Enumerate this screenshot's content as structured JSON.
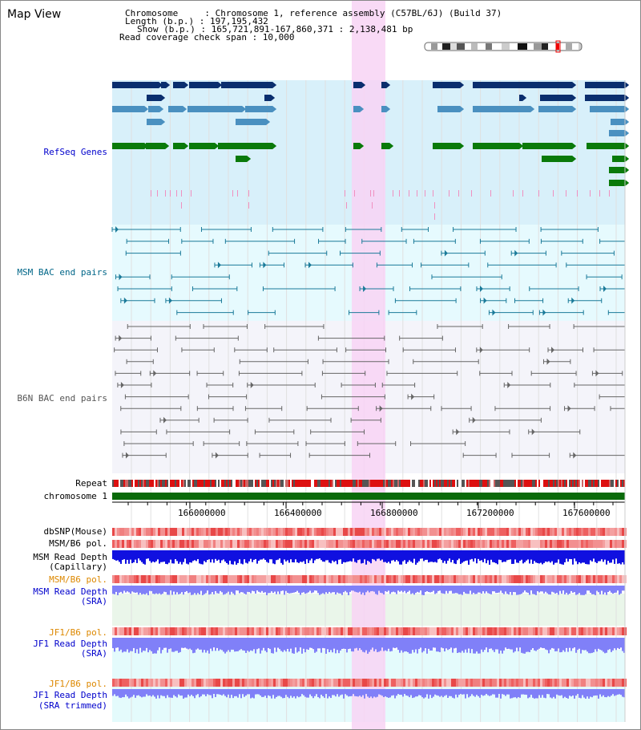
{
  "page": {
    "title": "Map View"
  },
  "header": {
    "line1": "Chromosome     : Chromosome 1, reference assembly (C57BL/6J) (Build 37)",
    "line2": "Length (b.p.) : 197,195,432",
    "line3": "Show (b.p.) : 165,721,891-167,860,371 : 2,138,481 bp",
    "line4": "Read coverage check span : 10,000"
  },
  "tracks": {
    "refseq": "RefSeq Genes",
    "msm_bac": "MSM BAC end pairs",
    "b6n_bac": "B6N BAC end pairs",
    "repeat": "Repeat",
    "chromosome": "chromosome 1",
    "dbsnp": "dbSNP(Mouse)",
    "msm_pol": "MSM/B6 pol.",
    "msm_depth_cap_1": "MSM Read Depth",
    "msm_depth_cap_2": "(Capillary)",
    "msm_pol_2": "MSM/B6 pol.",
    "msm_depth_sra_1": "MSM Read Depth",
    "msm_depth_sra_2": "(SRA)",
    "jf1_pol": "JF1/B6 pol.",
    "jf1_depth_sra_1": "JF1 Read Depth",
    "jf1_depth_sra_2": "(SRA)",
    "jf1_pol_2": "JF1/B6 pol.",
    "jf1_depth_trim_1": "JF1 Read Depth",
    "jf1_depth_trim_2": "(SRA trimmed)"
  },
  "axis": {
    "ticks": [
      "166000000",
      "166400000",
      "166800000",
      "167200000",
      "167600000"
    ]
  },
  "colors": {
    "refseq_bg": "#d8f0fa",
    "msm_bg": "#e6fafe",
    "b6n_bg": "#f4f4fa",
    "highlight": "#f8d4f4",
    "gene_dark": "#0a2e6e",
    "gene_mid": "#4a90c0",
    "gene_green": "#0a7a0a",
    "msm_line": "#1a7a99",
    "b6n_line": "#666666",
    "chrom": "#0a6a0a",
    "depth_blue": "#1010e0",
    "depth_light": "#8080f8"
  }
}
